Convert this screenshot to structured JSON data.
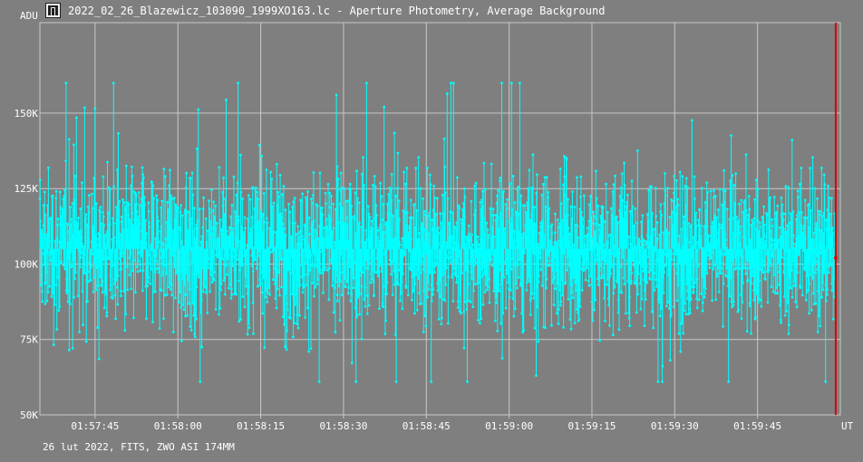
{
  "window": {
    "title": "2022_02_26_Blazewicz_103090_1999XO163.lc - Aperture Photometry, Average Background",
    "app_icon": "light-curve-app-icon"
  },
  "footer": {
    "text": "26 lut 2022, FITS, ZWO ASI 174MM"
  },
  "colors": {
    "background": "#7f7f7f",
    "grid": "#c8c8c8",
    "series": "#00ffff",
    "cursor": "#e00000",
    "text": "#ffffff"
  },
  "chart_data": {
    "type": "scatter",
    "title": "",
    "ylabel": "ADU",
    "xlabel": "UT",
    "xlim": [
      "01:57:35",
      "02:00:00"
    ],
    "ylim": [
      50000,
      180000
    ],
    "y_ticks": [
      {
        "value": 50000,
        "label": "50K"
      },
      {
        "value": 75000,
        "label": "75K"
      },
      {
        "value": 100000,
        "label": "100K"
      },
      {
        "value": 125000,
        "label": "125K"
      },
      {
        "value": 150000,
        "label": "150K"
      }
    ],
    "x_ticks": [
      "01:57:45",
      "01:58:00",
      "01:58:15",
      "01:58:30",
      "01:58:45",
      "01:59:00",
      "01:59:15",
      "01:59:30",
      "01:59:45"
    ],
    "grid": true,
    "marker_style": "dots with drop lines to baseline",
    "series": [
      {
        "estimated_points": 3000,
        "x_range": [
          "01:57:35",
          "01:59:59"
        ],
        "typical_range": [
          85000,
          125000
        ],
        "mean": 105000,
        "min": 61000,
        "max": 160000
      }
    ],
    "cursor": {
      "time": "01:59:59",
      "value": 102000
    }
  }
}
